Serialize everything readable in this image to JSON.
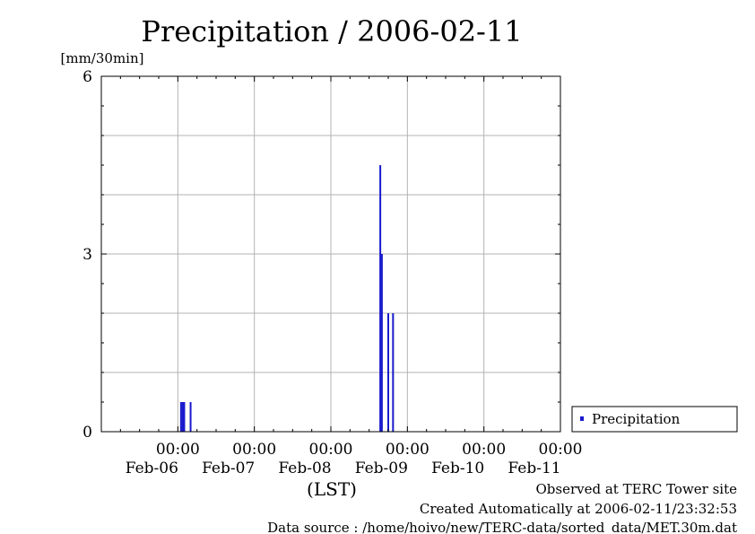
{
  "chart_data": {
    "type": "bar",
    "title": "Precipitation / 2006-02-11",
    "ylabel": "[mm/30min]",
    "xlabel": "(LST)",
    "ylim": [
      0,
      6
    ],
    "yticks": [
      "0",
      "3",
      "6"
    ],
    "xlim": [
      "2006-02-05 00:00",
      "2006-02-11 00:00"
    ],
    "xticks": [
      {
        "time": "2006-02-06 00:00",
        "top": "00:00",
        "bottom": "Feb-06"
      },
      {
        "time": "2006-02-07 00:00",
        "top": "00:00",
        "bottom": "Feb-07"
      },
      {
        "time": "2006-02-08 00:00",
        "top": "00:00",
        "bottom": "Feb-08"
      },
      {
        "time": "2006-02-09 00:00",
        "top": "00:00",
        "bottom": "Feb-09"
      },
      {
        "time": "2006-02-10 00:00",
        "top": "00:00",
        "bottom": "Feb-10"
      },
      {
        "time": "2006-02-11 00:00",
        "top": "00:00",
        "bottom": "Feb-11"
      }
    ],
    "grid": true,
    "legend_position": "right",
    "series": [
      {
        "name": "Precipitation",
        "color": "#1a1acc",
        "points": [
          {
            "x": "2006-02-06 01:00",
            "y": 0.5
          },
          {
            "x": "2006-02-06 01:30",
            "y": 0.5
          },
          {
            "x": "2006-02-06 02:00",
            "y": 0.5
          },
          {
            "x": "2006-02-06 04:00",
            "y": 0.5
          },
          {
            "x": "2006-02-08 15:30",
            "y": 4.5
          },
          {
            "x": "2006-02-08 16:00",
            "y": 3.0
          },
          {
            "x": "2006-02-08 18:00",
            "y": 2.0
          },
          {
            "x": "2006-02-08 19:30",
            "y": 2.0
          }
        ]
      }
    ]
  },
  "footer": {
    "site": "Observed at TERC Tower site",
    "created": "Created Automatically at 2006-02-11/23:32:53",
    "source": "Data source : /home/hoivo/new/TERC-data/sorted_data/MET.30m.dat"
  }
}
